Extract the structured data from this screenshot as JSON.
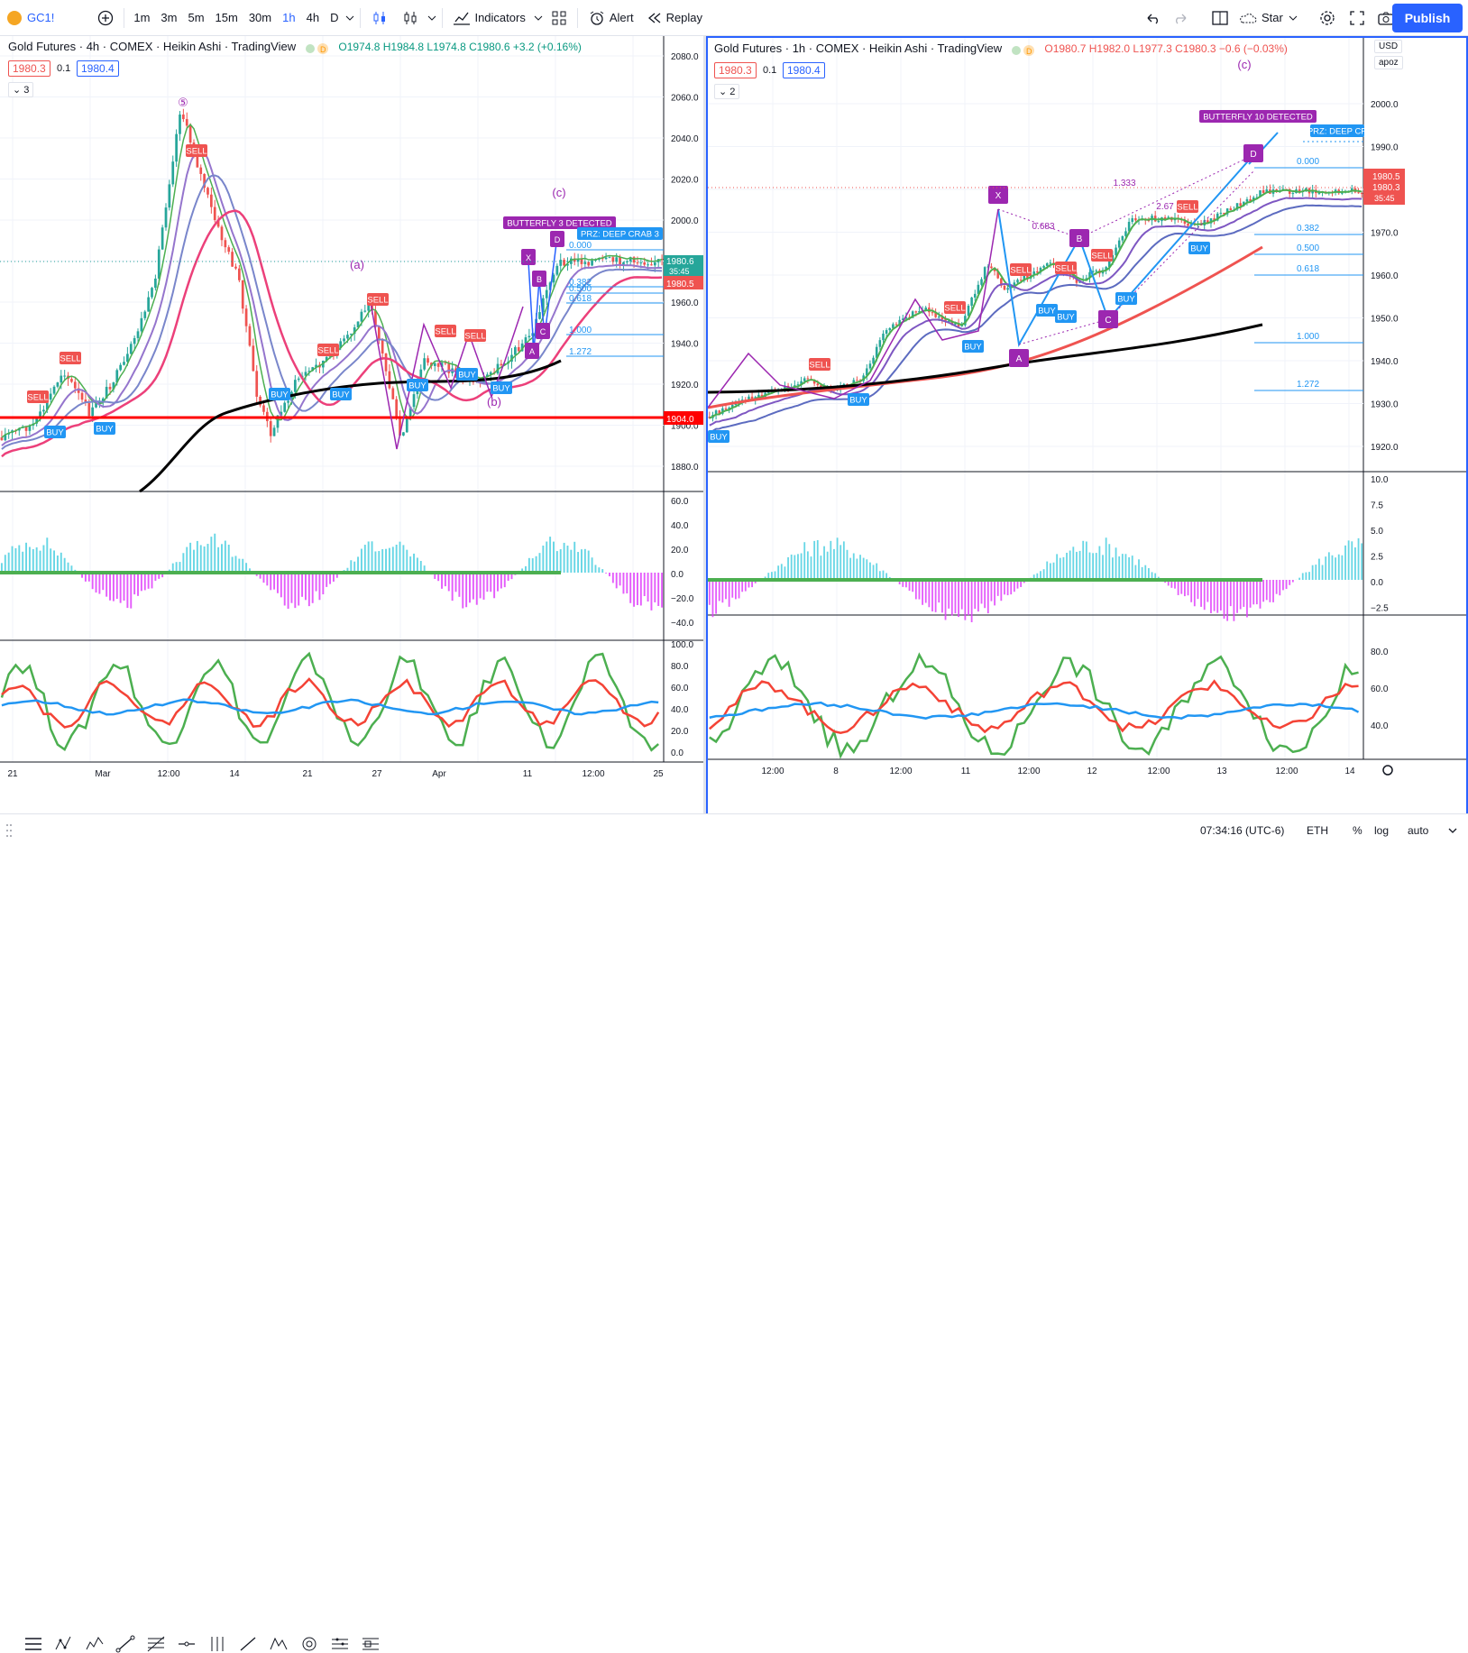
{
  "symbol": "GC1!",
  "timeframes": [
    "1m",
    "3m",
    "5m",
    "15m",
    "30m",
    "1h",
    "4h",
    "D"
  ],
  "active_timeframe": "1h",
  "toolbar": {
    "indicators": "Indicators",
    "alert": "Alert",
    "replay": "Replay",
    "layout": "Star",
    "publish": "Publish"
  },
  "colors": {
    "accent": "#2962ff",
    "up": "#26a69a",
    "down": "#ef5350",
    "cyan": "#4dd0e1",
    "magenta": "#e040fb",
    "green": "#4caf50",
    "purple": "#9c27b0"
  },
  "left_chart": {
    "title": "Gold Futures · 4h · COMEX · Heikin Ashi · TradingView",
    "ohlc": "O1974.8 H1984.8 L1974.8 C1980.6 +3.2 (+0.16%)",
    "bid": "1980.3",
    "spread": "0.1",
    "ask": "1980.4",
    "collapse": "3",
    "last_price": "1980.6",
    "countdown": "35:45",
    "mark_price": "1980.5",
    "line_price": "1904.0",
    "price_ticks": [
      "2080.0",
      "2060.0",
      "2040.0",
      "2020.0",
      "2000.0",
      "1980.0",
      "1960.0",
      "1940.0",
      "1920.0",
      "1900.0",
      "1880.0"
    ],
    "osc_ticks": [
      "60.0",
      "40.0",
      "20.0",
      "0.0",
      "−20.0",
      "−40.0"
    ],
    "rsi_ticks": [
      "100.0",
      "80.0",
      "60.0",
      "40.0",
      "20.0",
      "0.0"
    ],
    "time_ticks": [
      "21",
      "Mar",
      "12:00",
      "14",
      "21",
      "27",
      "Apr",
      "11",
      "12:00",
      "25"
    ],
    "pattern": "BUTTERFLY 3 DETECTED",
    "prz": "PRZ: DEEP CRAB 3",
    "fib": [
      "0.000",
      "0.382",
      "0.500",
      "0.618",
      "1.000",
      "1.272"
    ],
    "wave_labels": [
      "⑤",
      "(a)",
      "(b)",
      "(c)"
    ],
    "signals": {
      "sell": "SELL",
      "buy": "BUY"
    }
  },
  "right_chart": {
    "title": "Gold Futures · 1h · COMEX · Heikin Ashi · TradingView",
    "ohlc": "O1980.7 H1982.0 L1977.3 C1980.3 −0.6 (−0.03%)",
    "bid": "1980.3",
    "spread": "0.1",
    "ask": "1980.4",
    "collapse": "2",
    "price_ticks": [
      "2000.0",
      "1990.0",
      "1980.0",
      "1970.0",
      "1960.0",
      "1950.0",
      "1940.0",
      "1930.0",
      "1920.0"
    ],
    "last_price": "1980.5",
    "close_price": "1980.3",
    "countdown": "35:45",
    "osc_ticks": [
      "10.0",
      "7.5",
      "5.0",
      "2.5",
      "0.0",
      "−2.5"
    ],
    "rsi_ticks": [
      "80.0",
      "60.0",
      "40.0"
    ],
    "time_ticks": [
      "12:00",
      "8",
      "12:00",
      "11",
      "12:00",
      "12",
      "12:00",
      "13",
      "12:00",
      "14"
    ],
    "pattern": "BUTTERFLY 10 DETECTED",
    "prz": "PRZ: DEEP CR",
    "fib": [
      "0.000",
      "0.382",
      "0.500",
      "0.618",
      "1.000",
      "1.272"
    ],
    "xabcd": [
      "X",
      "A",
      "B",
      "C",
      "D"
    ],
    "ratios": [
      "0.683",
      "1.333",
      "2.67"
    ],
    "wave_label": "(c)",
    "currency": "USD",
    "scale_mode": "apoz"
  },
  "bottom": {
    "clock": "07:34:16 (UTC-6)",
    "session": "ETH",
    "percent": "%",
    "log": "log",
    "auto": "auto"
  }
}
